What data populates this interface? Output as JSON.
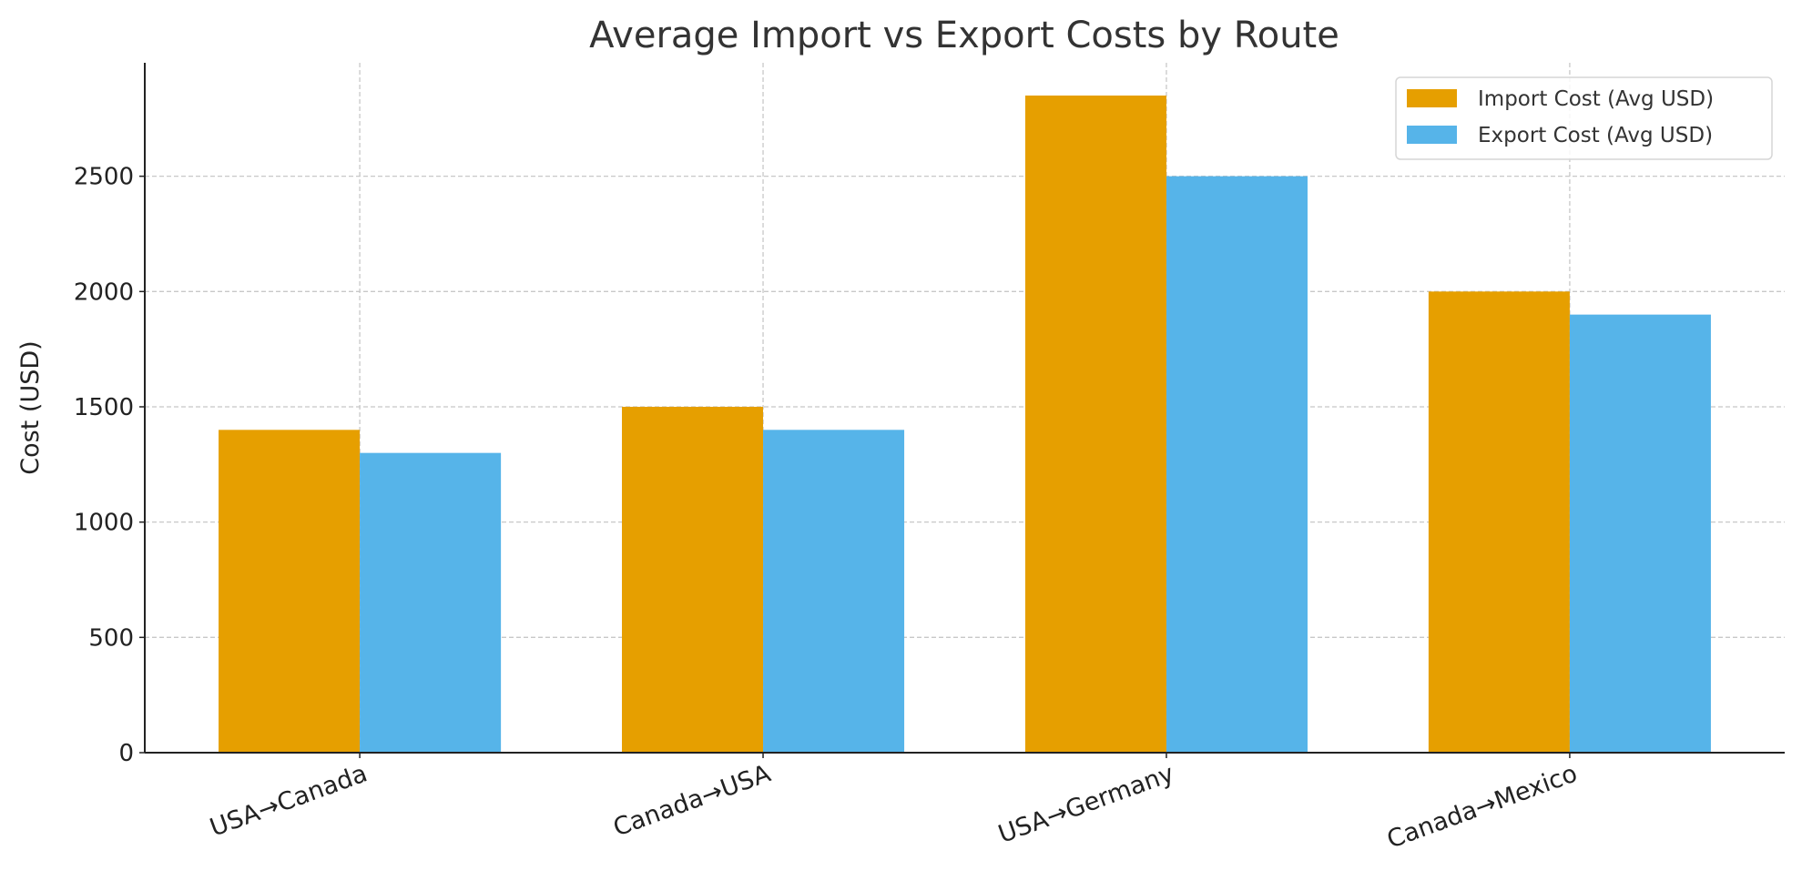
{
  "chart_data": {
    "type": "bar",
    "title": "Average Import vs Export Costs by Route",
    "xlabel": "",
    "ylabel": "Cost (USD)",
    "categories": [
      "USA→Canada",
      "Canada→USA",
      "USA→Germany",
      "Canada→Mexico"
    ],
    "series": [
      {
        "name": "Import Cost (Avg USD)",
        "color": "#E69F00",
        "values": [
          1400,
          1500,
          2850,
          2000
        ]
      },
      {
        "name": "Export Cost (Avg USD)",
        "color": "#56B4E9",
        "values": [
          1300,
          1400,
          2500,
          1900
        ]
      }
    ],
    "yticks": [
      "0",
      "500",
      "1000",
      "1500",
      "2000",
      "2500"
    ],
    "ylim": [
      0,
      2992
    ],
    "grid": true,
    "legend": "top-right"
  }
}
